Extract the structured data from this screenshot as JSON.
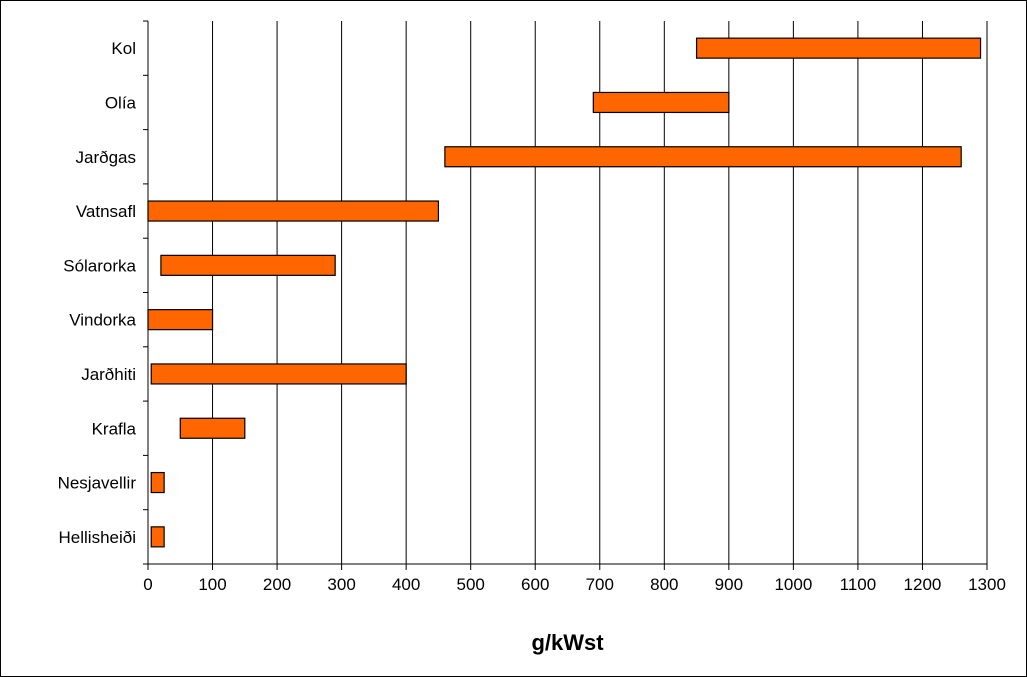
{
  "chart_data": {
    "type": "bar",
    "orientation": "horizontal",
    "bar_style": "floating-range",
    "title": "",
    "xlabel": "g/kWst",
    "ylabel": "",
    "xlim": [
      0,
      1300
    ],
    "x_ticks": [
      0,
      100,
      200,
      300,
      400,
      500,
      600,
      700,
      800,
      900,
      1000,
      1100,
      1200,
      1300
    ],
    "grid": "vertical",
    "legend": "none",
    "bar_color": "#ff6600",
    "bar_edge_color": "#000000",
    "categories": [
      "Kol",
      "Olía",
      "Jarðgas",
      "Vatnsafl",
      "Sólarorka",
      "Vindorka",
      "Jarðhiti",
      "Krafla",
      "Nesjavellir",
      "Hellisheiði"
    ],
    "ranges": [
      [
        850,
        1290
      ],
      [
        690,
        900
      ],
      [
        460,
        1260
      ],
      [
        0,
        450
      ],
      [
        20,
        290
      ],
      [
        0,
        100
      ],
      [
        5,
        400
      ],
      [
        50,
        150
      ],
      [
        5,
        25
      ],
      [
        5,
        25
      ]
    ]
  }
}
